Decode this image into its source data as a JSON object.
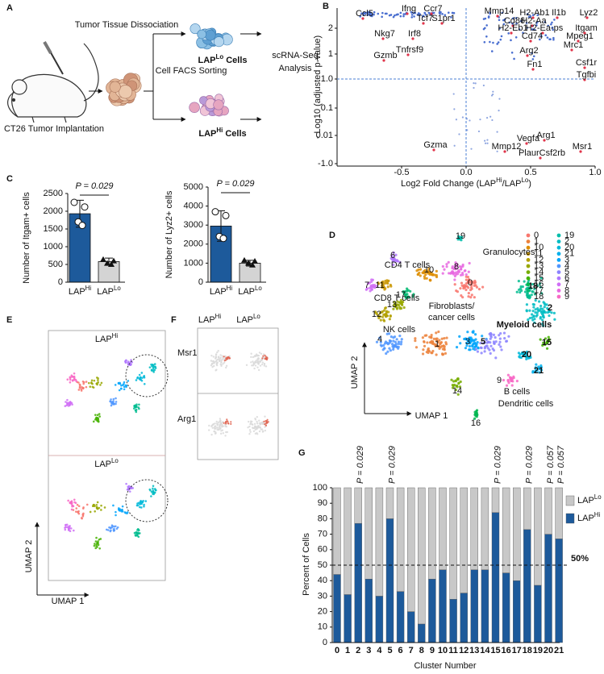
{
  "panel_labels": [
    "A",
    "B",
    "C",
    "D",
    "E",
    "F",
    "G"
  ],
  "panel_a": {
    "dissociation": "Tumor Tissue Dissociation",
    "lo_cells": [
      "LAP",
      "Lo",
      " Cells"
    ],
    "sorting": "Cell FACS Sorting",
    "hi_cells": [
      "LAP",
      "Hi",
      " Cells"
    ],
    "analysis": [
      "scRNA-Seq",
      "Analysis"
    ],
    "implantation": "CT26 Tumor Implantation"
  },
  "chart_data": [
    {
      "type": "volcano",
      "ylabel": "- Log10 (adjusted p-value)",
      "xlabel": [
        "Log2 Fold Change (LAP",
        "Hi",
        "/LAP",
        "Lo",
        ")"
      ],
      "xlim": [
        -1,
        1
      ],
      "xticks": [
        -0.5,
        {
          "value": 0,
          "label": "0.0"
        },
        0.5,
        {
          "value": 1,
          "label": "1.0"
        }
      ],
      "ytick_labels": [
        "2",
        "1",
        "1.0",
        "0.1",
        "0.01",
        "-1.0"
      ],
      "vline": 0,
      "gene_labels": [
        "Ccl5",
        "Ifng",
        "Ccr7",
        "Tcf7",
        "S1pr1",
        "Nkg7",
        "Irf8",
        "Gzmb",
        "Tnfrsf9",
        "Gzma",
        "Mmp14",
        "H2-Ab1",
        "Il1b",
        "Lyz2",
        "Cd86",
        "H2-Aa",
        "H2-Eb1",
        "H2-Ea-ps",
        "Itgam",
        "Cd74",
        "Mpeg1",
        "Mrc1",
        "Arg2",
        "Fn1",
        "Csf1r",
        "Tgfbi",
        "Vegfa",
        "Arg1",
        "Mmp12",
        "Msr1",
        "PlaurCsf2rb"
      ]
    },
    {
      "type": "bar",
      "ylabel": "Number of Itgam+ cells",
      "categories": [
        [
          "LAP",
          "Hi"
        ],
        [
          "LAP",
          "Lo"
        ]
      ],
      "values": [
        1930,
        580
      ],
      "errors": [
        380,
        100
      ],
      "points": [
        [
          2250,
          2120,
          1700,
          1600
        ],
        [
          640,
          600,
          530,
          500
        ]
      ],
      "colors": [
        "#1d5a9b",
        "#d4d4d4"
      ],
      "ylim": [
        0,
        2500
      ],
      "yticks": [
        0,
        500,
        1000,
        1500,
        2000,
        2500
      ],
      "annotation": "P = 0.029"
    },
    {
      "type": "bar",
      "ylabel": "Number of Lyz2+ cells",
      "categories": [
        [
          "LAP",
          "Hi"
        ],
        [
          "LAP",
          "Lo"
        ]
      ],
      "values": [
        2950,
        1000
      ],
      "errors": [
        800,
        150
      ],
      "points": [
        [
          3700,
          3500,
          2400,
          2300
        ],
        [
          1150,
          1100,
          1000,
          900
        ]
      ],
      "colors": [
        "#1d5a9b",
        "#d4d4d4"
      ],
      "ylim": [
        0,
        5000
      ],
      "yticks": [
        0,
        1000,
        2000,
        3000,
        4000,
        5000
      ],
      "annotation": "P = 0.029"
    },
    {
      "type": "stacked_bar",
      "ylabel": "Percent of Cells",
      "xlabel": "Cluster Number",
      "categories": [
        "0",
        "1",
        "2",
        "3",
        "4",
        "5",
        "6",
        "7",
        "8",
        "9",
        "10",
        "11",
        "12",
        "13",
        "14",
        "15",
        "16",
        "17",
        "18",
        "19",
        "20",
        "21"
      ],
      "series": [
        {
          "name": [
            "LAP",
            "Hi"
          ],
          "color": "#1d5a9b",
          "values": [
            44,
            31,
            77,
            41,
            30,
            80,
            33,
            20,
            12,
            41,
            47,
            28,
            32,
            47,
            47,
            84,
            45,
            40,
            73,
            37,
            70,
            67
          ]
        },
        {
          "name": [
            "LAP",
            "Lo"
          ],
          "color": "#c8c8c8",
          "values": [
            56,
            69,
            23,
            59,
            70,
            20,
            67,
            80,
            88,
            59,
            53,
            72,
            68,
            53,
            53,
            16,
            55,
            60,
            27,
            63,
            30,
            33
          ]
        }
      ],
      "ylim": [
        0,
        100
      ],
      "yticks": [
        0,
        10,
        20,
        30,
        40,
        50,
        60,
        70,
        80,
        90,
        100
      ],
      "reference_line": {
        "value": 50,
        "label": "50%"
      },
      "annotations": [
        {
          "category": "2",
          "text": "P = 0.029"
        },
        {
          "category": "5",
          "text": "P = 0.029"
        },
        {
          "category": "15",
          "text": "P = 0.029"
        },
        {
          "category": "18",
          "text": "P = 0.029"
        },
        {
          "category": "20",
          "text": "P = 0.057"
        },
        {
          "category": "21",
          "text": "P = 0.057"
        }
      ]
    }
  ],
  "panel_d": {
    "cluster_labels": [
      "0",
      "1",
      "10",
      "11",
      "12",
      "13",
      "14",
      "15",
      "16",
      "17",
      "18",
      "19",
      "2",
      "20",
      "21",
      "3",
      "4",
      "5",
      "6",
      "7",
      "8",
      "9"
    ],
    "cluster_colors": [
      "#F8766D",
      "#EC823C",
      "#DD8D00",
      "#CA9700",
      "#B3A000",
      "#98A700",
      "#77AD00",
      "#45B200",
      "#00B64F",
      "#00BA71",
      "#00BC8F",
      "#00BDAA",
      "#00BCC3",
      "#00B8D9",
      "#00B0EC",
      "#00A5FB",
      "#5096FF",
      "#8C84FF",
      "#B077FF",
      "#D06EF6",
      "#E868E1",
      "#F869C5"
    ],
    "cell_types": [
      "Granulocytes",
      "CD4 T cells",
      "CD8 T cells",
      "Fibroblasts/",
      "cancer cells",
      "Myeloid cells",
      "NK cells",
      "B cells",
      "Dendritic cells"
    ],
    "axis_labels": [
      "UMAP 2",
      "UMAP 1"
    ]
  },
  "panel_e": {
    "titles": [
      [
        "LAP",
        "Hi"
      ],
      [
        "LAP",
        "Lo"
      ]
    ],
    "axis_labels": [
      "UMAP 2",
      "UMAP 1"
    ]
  },
  "panel_f": {
    "columns": [
      [
        "LAP",
        "Hi"
      ],
      [
        "LAP",
        "Lo"
      ]
    ],
    "rows": [
      "Msr1",
      "Arg1"
    ]
  }
}
